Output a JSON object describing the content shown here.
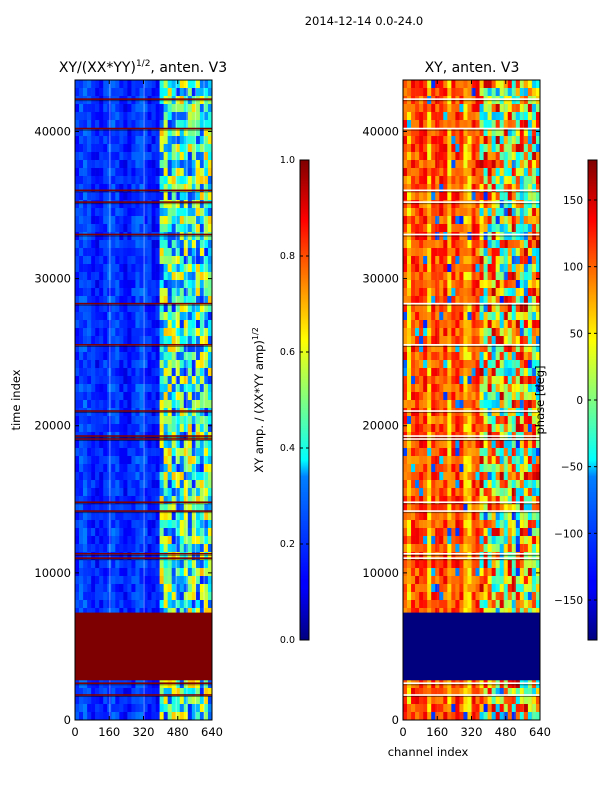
{
  "suptitle": "2014-12-14 0.0-24.0",
  "colors": {
    "jet": [
      "#00007f",
      "#0000ff",
      "#0080ff",
      "#00ffff",
      "#80ff80",
      "#ffff00",
      "#ff8000",
      "#ff0000",
      "#7f0000"
    ],
    "flag_red": "#7f0000",
    "flag_blue": "#00007f",
    "background": "#ffffff"
  },
  "chart_data": [
    {
      "type": "heatmap",
      "title_prefix": "XY/(XX*YY)",
      "title_sup": "1/2",
      "title_suffix": ", anten. V3",
      "xlabel": "",
      "ylabel": "time index",
      "xlim": [
        0,
        640
      ],
      "ylim": [
        0,
        43500
      ],
      "xticks": [
        0,
        160,
        320,
        480,
        640
      ],
      "yticks": [
        0,
        10000,
        20000,
        30000,
        40000
      ],
      "flagged_block": {
        "y_start": 2700,
        "y_end": 7300,
        "value": 1.0
      },
      "flag_lines": [
        1700,
        2500,
        11000,
        11300,
        14200,
        14800,
        19100,
        19300,
        21000,
        25500,
        28300,
        33000,
        35200,
        36000,
        40200,
        42200
      ],
      "colorbar": {
        "label": "XY amp. / (XX*YY amp)",
        "label_sup": "1/2",
        "range": [
          0.0,
          1.0
        ],
        "ticks": [
          "0.0",
          "0.2",
          "0.4",
          "0.6",
          "0.8",
          "1.0"
        ]
      }
    },
    {
      "type": "heatmap",
      "title": "XY, anten. V3",
      "xlabel": "channel index",
      "ylabel": "",
      "xlim": [
        0,
        640
      ],
      "ylim": [
        0,
        43500
      ],
      "xticks": [
        0,
        160,
        320,
        480,
        640
      ],
      "yticks": [
        0,
        10000,
        20000,
        30000,
        40000
      ],
      "flagged_block": {
        "y_start": 2700,
        "y_end": 7300,
        "value": -180
      },
      "flag_lines": [
        1700,
        2500,
        11000,
        11300,
        14200,
        14800,
        19100,
        19300,
        21000,
        25500,
        28300,
        33000,
        35200,
        36000,
        40200,
        42200
      ],
      "colorbar": {
        "label": "phase [deg]",
        "range": [
          -180,
          180
        ],
        "ticks": [
          "150",
          "100",
          "50",
          "0",
          "−50",
          "−100",
          "−150"
        ],
        "tick_values": [
          150,
          100,
          50,
          0,
          -50,
          -100,
          -150
        ]
      }
    }
  ]
}
